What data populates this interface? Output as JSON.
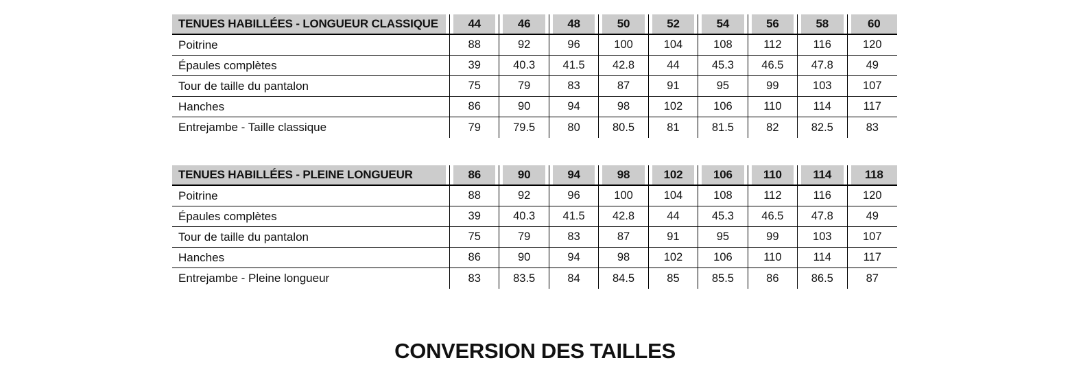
{
  "title": "CONVERSION DES TAILLES",
  "colors": {
    "header_bg": "#cccccc",
    "border": "#000000",
    "text": "#111111",
    "page_bg": "#ffffff"
  },
  "tables": [
    {
      "name": "TENUES HABILLÉES - LONGUEUR CLASSIQUE",
      "sizes": [
        "44",
        "46",
        "48",
        "50",
        "52",
        "54",
        "56",
        "58",
        "60"
      ],
      "rows": [
        {
          "label": "Poitrine",
          "values": [
            "88",
            "92",
            "96",
            "100",
            "104",
            "108",
            "112",
            "116",
            "120"
          ]
        },
        {
          "label": "Épaules complètes",
          "values": [
            "39",
            "40.3",
            "41.5",
            "42.8",
            "44",
            "45.3",
            "46.5",
            "47.8",
            "49"
          ]
        },
        {
          "label": "Tour de taille du pantalon",
          "values": [
            "75",
            "79",
            "83",
            "87",
            "91",
            "95",
            "99",
            "103",
            "107"
          ]
        },
        {
          "label": "Hanches",
          "values": [
            "86",
            "90",
            "94",
            "98",
            "102",
            "106",
            "110",
            "114",
            "117"
          ]
        },
        {
          "label": "Entrejambe - Taille classique",
          "values": [
            "79",
            "79.5",
            "80",
            "80.5",
            "81",
            "81.5",
            "82",
            "82.5",
            "83"
          ]
        }
      ]
    },
    {
      "name": "TENUES HABILLÉES - PLEINE LONGUEUR",
      "sizes": [
        "86",
        "90",
        "94",
        "98",
        "102",
        "106",
        "110",
        "114",
        "118"
      ],
      "rows": [
        {
          "label": "Poitrine",
          "values": [
            "88",
            "92",
            "96",
            "100",
            "104",
            "108",
            "112",
            "116",
            "120"
          ]
        },
        {
          "label": "Épaules complètes",
          "values": [
            "39",
            "40.3",
            "41.5",
            "42.8",
            "44",
            "45.3",
            "46.5",
            "47.8",
            "49"
          ]
        },
        {
          "label": "Tour de taille du pantalon",
          "values": [
            "75",
            "79",
            "83",
            "87",
            "91",
            "95",
            "99",
            "103",
            "107"
          ]
        },
        {
          "label": "Hanches",
          "values": [
            "86",
            "90",
            "94",
            "98",
            "102",
            "106",
            "110",
            "114",
            "117"
          ]
        },
        {
          "label": "Entrejambe - Pleine longueur",
          "values": [
            "83",
            "83.5",
            "84",
            "84.5",
            "85",
            "85.5",
            "86",
            "86.5",
            "87"
          ]
        }
      ]
    }
  ]
}
